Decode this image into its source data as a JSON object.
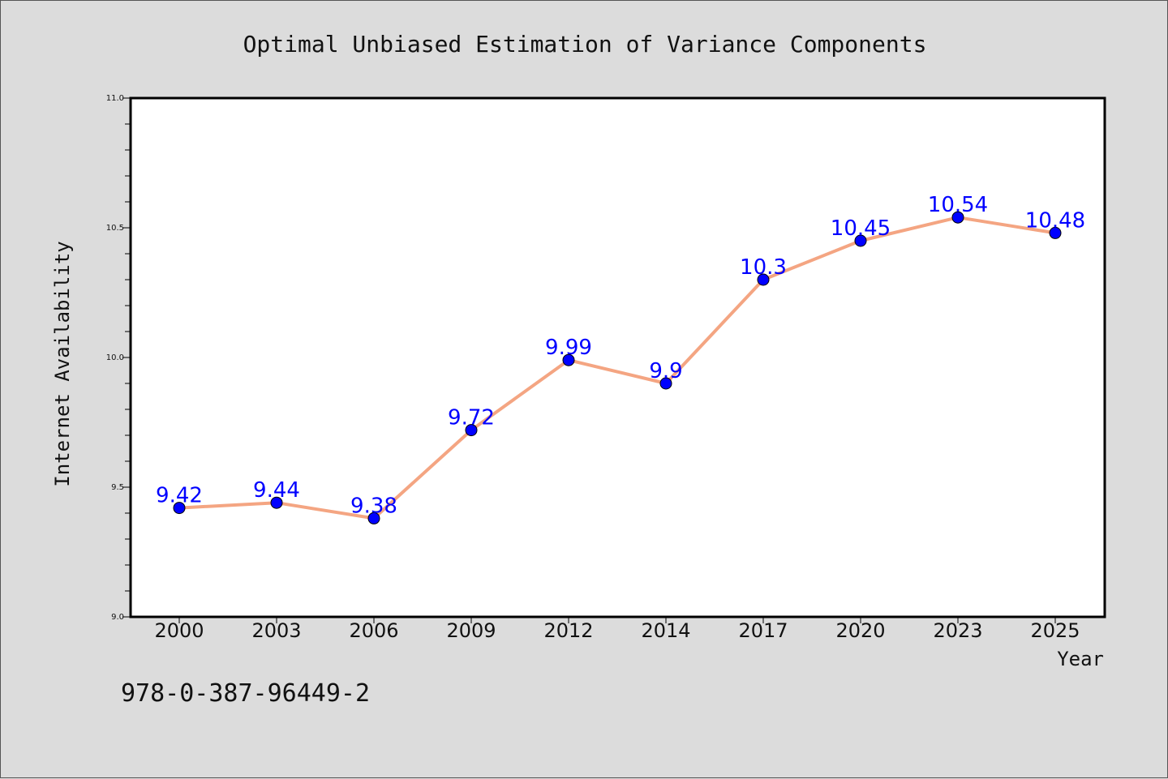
{
  "chart_data": {
    "type": "line",
    "title": "Optimal Unbiased Estimation of Variance Components",
    "xlabel": "Year",
    "ylabel": "Internet Availability",
    "categories": [
      "2000",
      "2003",
      "2006",
      "2009",
      "2012",
      "2014",
      "2017",
      "2020",
      "2023",
      "2025"
    ],
    "series": [
      {
        "values": [
          9.42,
          9.44,
          9.38,
          9.72,
          9.99,
          9.9,
          10.3,
          10.45,
          10.54,
          10.48
        ],
        "data_labels": [
          "9.42",
          "9.44",
          "9.38",
          "9.72",
          "9.99",
          "9.9",
          "10.3",
          "10.45",
          "10.54",
          "10.48"
        ]
      }
    ],
    "ylim": [
      9.0,
      11.0
    ],
    "yticks": [
      "9.0",
      "9.5",
      "10.0",
      "10.5",
      "11.0"
    ],
    "grid": false,
    "line_color": "#f4a582",
    "marker_color": "#0000ff",
    "label_color": "#0000ff"
  },
  "footer": {
    "isbn": "978-0-387-96449-2"
  }
}
